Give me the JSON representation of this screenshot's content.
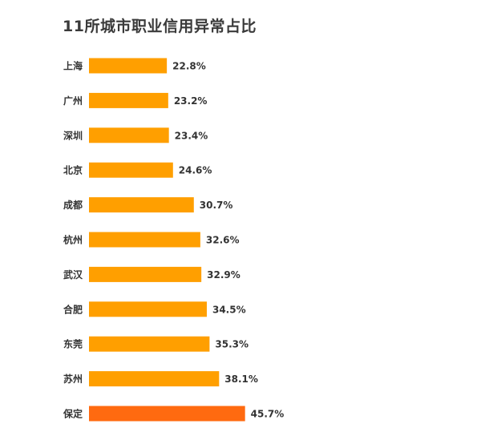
{
  "chart_data": {
    "type": "bar",
    "orientation": "horizontal",
    "title": "11所城市职业信用异常占比",
    "categories": [
      "上海",
      "广州",
      "深圳",
      "北京",
      "成都",
      "杭州",
      "武汉",
      "合肥",
      "东莞",
      "苏州",
      "保定"
    ],
    "values": [
      22.8,
      23.2,
      23.4,
      24.6,
      30.7,
      32.6,
      32.9,
      34.5,
      35.3,
      38.1,
      45.7
    ],
    "value_labels": [
      "22.8%",
      "23.2%",
      "23.4%",
      "24.6%",
      "30.7%",
      "32.6%",
      "32.9%",
      "34.5%",
      "35.3%",
      "38.1%",
      "45.7%"
    ],
    "unit": "%",
    "highlight_index": 10,
    "grid": false,
    "legend": "none",
    "colors": {
      "bar": "#FF9F00",
      "highlight_bar": "#FF6A10",
      "highlight_label": "#FF6A10",
      "label": "#333333"
    }
  }
}
